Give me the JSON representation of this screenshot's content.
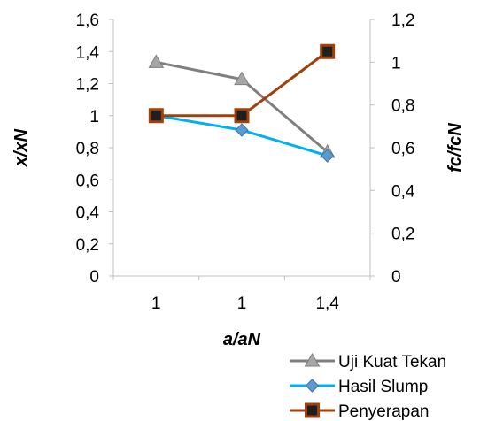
{
  "chart_data": {
    "type": "line",
    "categories": [
      "1",
      "1",
      "1,4"
    ],
    "xlabel": "a/aN",
    "ylabel_left": "x/xN",
    "ylabel_right": "fc/fcN",
    "ylim_left": [
      0,
      1.6
    ],
    "ylim_right": [
      0,
      1.2
    ],
    "yticks_left": [
      "0",
      "0,2",
      "0,4",
      "0,6",
      "0,8",
      "1",
      "1,2",
      "1,4",
      "1,6"
    ],
    "yticks_right": [
      "0",
      "0,2",
      "0,4",
      "0,6",
      "0,8",
      "1",
      "1,2"
    ],
    "grid": false,
    "legend_position": "bottom-right",
    "series": [
      {
        "name": "Uji Kuat Tekan",
        "axis": "right",
        "values": [
          1.0,
          0.92,
          0.58
        ],
        "color": "#7f7f7f",
        "marker": "triangle"
      },
      {
        "name": "Hasil Slump",
        "axis": "left",
        "values": [
          1.0,
          0.91,
          0.75
        ],
        "color": "#00b0f0",
        "marker": "diamond",
        "marker_color": "#5b9bd5"
      },
      {
        "name": "Penyerapan",
        "axis": "left",
        "values": [
          1.0,
          1.0,
          1.4
        ],
        "color": "#a0400a",
        "marker": "square",
        "marker_color": "#1f1f1f"
      }
    ]
  }
}
